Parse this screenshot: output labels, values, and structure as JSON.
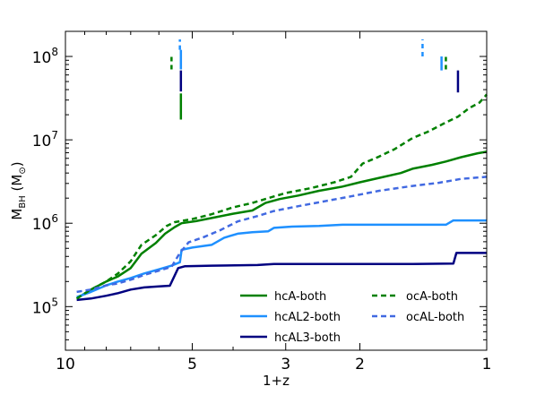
{
  "chart_data": {
    "type": "line",
    "xlabel": "1+z",
    "ylabel": "M_BH (M_sun)",
    "ylabel_parts": {
      "main": "M",
      "sub": "BH",
      "unit_open": " (M",
      "unit_sub": "⊙",
      "unit_close": ")"
    },
    "x_scale": "log",
    "x_reversed": true,
    "xlim": [
      10,
      1
    ],
    "y_scale": "log",
    "ylim": [
      30000,
      200000000
    ],
    "x_ticks": [
      {
        "value": 10,
        "label": "10"
      },
      {
        "value": 5,
        "label": "5"
      },
      {
        "value": 3,
        "label": "3"
      },
      {
        "value": 2,
        "label": "2"
      },
      {
        "value": 1,
        "label": "1"
      }
    ],
    "y_ticks": [
      {
        "value": 100000,
        "base": "10",
        "exp": "5"
      },
      {
        "value": 1000000,
        "base": "10",
        "exp": "6"
      },
      {
        "value": 10000000,
        "base": "10",
        "exp": "7"
      },
      {
        "value": 100000000,
        "base": "10",
        "exp": "8"
      }
    ],
    "grid": false,
    "legend_position": "lower-right",
    "series": [
      {
        "name": "hcA-both",
        "color": "#008000",
        "dash": "solid",
        "points": [
          [
            9.4,
            125000.0
          ],
          [
            8.7,
            160000.0
          ],
          [
            8.0,
            200000.0
          ],
          [
            7.5,
            230000.0
          ],
          [
            7.0,
            290000.0
          ],
          [
            6.6,
            430000.0
          ],
          [
            6.1,
            580000.0
          ],
          [
            5.8,
            750000.0
          ],
          [
            5.5,
            900000.0
          ],
          [
            5.3,
            1000000.0
          ],
          [
            4.9,
            1060000.0
          ],
          [
            4.4,
            1180000.0
          ],
          [
            4.0,
            1300000.0
          ],
          [
            3.6,
            1420000.0
          ],
          [
            3.35,
            1750000.0
          ],
          [
            3.1,
            1950000.0
          ],
          [
            2.8,
            2150000.0
          ],
          [
            2.5,
            2450000.0
          ],
          [
            2.2,
            2750000.0
          ],
          [
            2.0,
            3100000.0
          ],
          [
            1.8,
            3500000.0
          ],
          [
            1.6,
            4000000.0
          ],
          [
            1.5,
            4500000.0
          ],
          [
            1.35,
            5000000.0
          ],
          [
            1.25,
            5500000.0
          ],
          [
            1.15,
            6200000.0
          ],
          [
            1.05,
            6900000.0
          ],
          [
            1.0,
            7200000.0
          ]
        ]
      },
      {
        "name": "hcAL2-both",
        "color": "#1e90ff",
        "dash": "solid",
        "points": [
          [
            9.4,
            130000.0
          ],
          [
            8.7,
            150000.0
          ],
          [
            8.0,
            180000.0
          ],
          [
            7.5,
            200000.0
          ],
          [
            7.0,
            220000.0
          ],
          [
            6.5,
            250000.0
          ],
          [
            6.0,
            280000.0
          ],
          [
            5.6,
            310000.0
          ],
          [
            5.35,
            340000.0
          ],
          [
            5.3,
            480000.0
          ],
          [
            5.0,
            510000.0
          ],
          [
            4.5,
            550000.0
          ],
          [
            4.2,
            670000.0
          ],
          [
            3.9,
            750000.0
          ],
          [
            3.6,
            780000.0
          ],
          [
            3.3,
            800000.0
          ],
          [
            3.2,
            880000.0
          ],
          [
            2.9,
            910000.0
          ],
          [
            2.5,
            930000.0
          ],
          [
            2.2,
            960000.0
          ],
          [
            1.8,
            960000.0
          ],
          [
            1.5,
            960000.0
          ],
          [
            1.25,
            960000.0
          ],
          [
            1.2,
            1080000.0
          ],
          [
            1.0,
            1080000.0
          ]
        ]
      },
      {
        "name": "hcAL3-both",
        "color": "#000080",
        "dash": "solid",
        "points": [
          [
            9.4,
            120000.0
          ],
          [
            8.7,
            125000.0
          ],
          [
            8.0,
            135000.0
          ],
          [
            7.5,
            145000.0
          ],
          [
            7.0,
            160000.0
          ],
          [
            6.5,
            170000.0
          ],
          [
            6.0,
            175000.0
          ],
          [
            5.65,
            178000.0
          ],
          [
            5.4,
            290000.0
          ],
          [
            5.2,
            305000.0
          ],
          [
            4.5,
            310000.0
          ],
          [
            3.5,
            315000.0
          ],
          [
            3.2,
            325000.0
          ],
          [
            2.5,
            325000.0
          ],
          [
            2.0,
            325000.0
          ],
          [
            1.5,
            325000.0
          ],
          [
            1.2,
            328000.0
          ],
          [
            1.18,
            440000.0
          ],
          [
            1.0,
            440000.0
          ]
        ]
      },
      {
        "name": "ocA-both",
        "color": "#008000",
        "dash": "dashed",
        "points": [
          [
            9.4,
            125000.0
          ],
          [
            8.7,
            160000.0
          ],
          [
            8.0,
            200000.0
          ],
          [
            7.5,
            250000.0
          ],
          [
            7.0,
            350000.0
          ],
          [
            6.6,
            550000.0
          ],
          [
            6.1,
            720000.0
          ],
          [
            5.75,
            930000.0
          ],
          [
            5.5,
            1030000.0
          ],
          [
            5.0,
            1120000.0
          ],
          [
            4.5,
            1280000.0
          ],
          [
            4.0,
            1550000.0
          ],
          [
            3.6,
            1750000.0
          ],
          [
            3.3,
            2000000.0
          ],
          [
            3.0,
            2300000.0
          ],
          [
            2.6,
            2650000.0
          ],
          [
            2.3,
            3100000.0
          ],
          [
            2.1,
            3600000.0
          ],
          [
            1.97,
            5200000.0
          ],
          [
            1.8,
            6300000.0
          ],
          [
            1.65,
            7800000.0
          ],
          [
            1.5,
            10500000.0
          ],
          [
            1.38,
            12500000.0
          ],
          [
            1.27,
            15500000.0
          ],
          [
            1.17,
            19000000.0
          ],
          [
            1.1,
            24000000.0
          ],
          [
            1.04,
            28000000.0
          ],
          [
            1.0,
            35000000.0
          ]
        ]
      },
      {
        "name": "ocAL-both",
        "color": "#4169e1",
        "dash": "dashed",
        "points": [
          [
            9.4,
            150000.0
          ],
          [
            8.7,
            160000.0
          ],
          [
            8.0,
            180000.0
          ],
          [
            7.5,
            190000.0
          ],
          [
            7.0,
            210000.0
          ],
          [
            6.5,
            240000.0
          ],
          [
            6.0,
            270000.0
          ],
          [
            5.6,
            300000.0
          ],
          [
            5.35,
            440000.0
          ],
          [
            5.1,
            590000.0
          ],
          [
            4.7,
            680000.0
          ],
          [
            4.3,
            820000.0
          ],
          [
            3.9,
            1050000.0
          ],
          [
            3.5,
            1220000.0
          ],
          [
            3.2,
            1400000.0
          ],
          [
            2.8,
            1600000.0
          ],
          [
            2.4,
            1850000.0
          ],
          [
            2.1,
            2100000.0
          ],
          [
            1.8,
            2450000.0
          ],
          [
            1.5,
            2800000.0
          ],
          [
            1.3,
            3050000.0
          ],
          [
            1.15,
            3400000.0
          ],
          [
            1.0,
            3600000.0
          ]
        ]
      }
    ],
    "markers": [
      {
        "x": 5.6,
        "y1": 70000000.0,
        "y2": 100000000.0,
        "color": "#008000",
        "dash": "dashed"
      },
      {
        "x": 5.35,
        "y1": 120000000.0,
        "y2": 160000000.0,
        "color": "#1e90ff",
        "dash": "dashed"
      },
      {
        "x": 5.32,
        "y1": 70000000.0,
        "y2": 120000000.0,
        "color": "#1e90ff",
        "dash": "solid"
      },
      {
        "x": 5.32,
        "y1": 38000000.0,
        "y2": 68000000.0,
        "color": "#000080",
        "dash": "solid"
      },
      {
        "x": 5.32,
        "y1": 17500000.0,
        "y2": 36000000.0,
        "color": "#008000",
        "dash": "solid"
      },
      {
        "x": 1.42,
        "y1": 100000000.0,
        "y2": 160000000.0,
        "color": "#1e90ff",
        "dash": "dashed"
      },
      {
        "x": 1.28,
        "y1": 68000000.0,
        "y2": 100000000.0,
        "color": "#1e90ff",
        "dash": "solid"
      },
      {
        "x": 1.25,
        "y1": 70000000.0,
        "y2": 100000000.0,
        "color": "#008000",
        "dash": "dashed"
      },
      {
        "x": 1.17,
        "y1": 37000000.0,
        "y2": 68000000.0,
        "color": "#000080",
        "dash": "solid"
      }
    ],
    "legend": [
      {
        "label": "hcA-both",
        "color": "#008000",
        "dash": "solid",
        "col": 0,
        "row": 0
      },
      {
        "label": "hcAL2-both",
        "color": "#1e90ff",
        "dash": "solid",
        "col": 0,
        "row": 1
      },
      {
        "label": "hcAL3-both",
        "color": "#000080",
        "dash": "solid",
        "col": 0,
        "row": 2
      },
      {
        "label": "ocA-both",
        "color": "#008000",
        "dash": "dashed",
        "col": 1,
        "row": 0
      },
      {
        "label": "ocAL-both",
        "color": "#4169e1",
        "dash": "dashed",
        "col": 1,
        "row": 1
      }
    ]
  }
}
